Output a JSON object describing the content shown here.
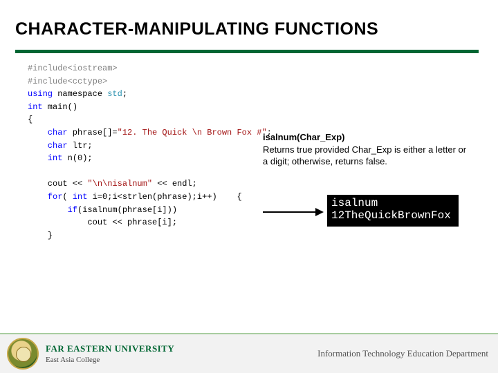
{
  "title": {
    "text": "CHARACTER-MANIPULATING FUNCTIONS",
    "fontsize": 25,
    "color": "#000000"
  },
  "underline_color": "#006633",
  "code": {
    "font_family": "Consolas",
    "fontsize": 12,
    "lines": {
      "l1a": "#include",
      "l1b": "<iostream>",
      "l2a": "#include",
      "l2b": "<cctype>",
      "l3a": "using",
      "l3b": " namespace ",
      "l3c": "std",
      "l3d": ";",
      "l4a": "int",
      "l4b": " main()",
      "l5": "{",
      "l6a": "    char",
      "l6b": " phrase[]=",
      "l6c": "\"12. The Quick \\n Brown Fox #\"",
      "l6d": ";",
      "l7a": "    char",
      "l7b": " ltr;",
      "l8a": "    int",
      "l8b": " n(0);",
      "l9a": "    cout << ",
      "l9b": "\"\\n\\nisalnum\"",
      "l9c": " << endl;",
      "l10a": "    for",
      "l10b": "( ",
      "l10c": "int",
      "l10d": " i=0;i<strlen(phrase);i++)    {",
      "l11a": "        if",
      "l11b": "(isalnum(phrase[i]))",
      "l12": "            cout << phrase[i];",
      "l13": "    }"
    },
    "colors": {
      "keyword": "#0000ff",
      "classname": "#2b91af",
      "string": "#a31515",
      "text": "#000000",
      "preproc": "#808080"
    }
  },
  "description": {
    "title": "isalnum(Char_Exp)",
    "body": "Returns true provided Char_Exp is either a letter or a digit; otherwise, returns false.",
    "fontsize": 13
  },
  "console": {
    "bg": "#000000",
    "fg": "#ffffff",
    "line1": "isalnum",
    "line2": "12TheQuickBrownFox"
  },
  "footer": {
    "bg": "#f2f2f2",
    "accent_line": "#a8cda0",
    "university": "FAR EASTERN UNIVERSITY",
    "college": "East Asia College",
    "department": "Information Technology Education Department",
    "uni_color": "#006633"
  }
}
